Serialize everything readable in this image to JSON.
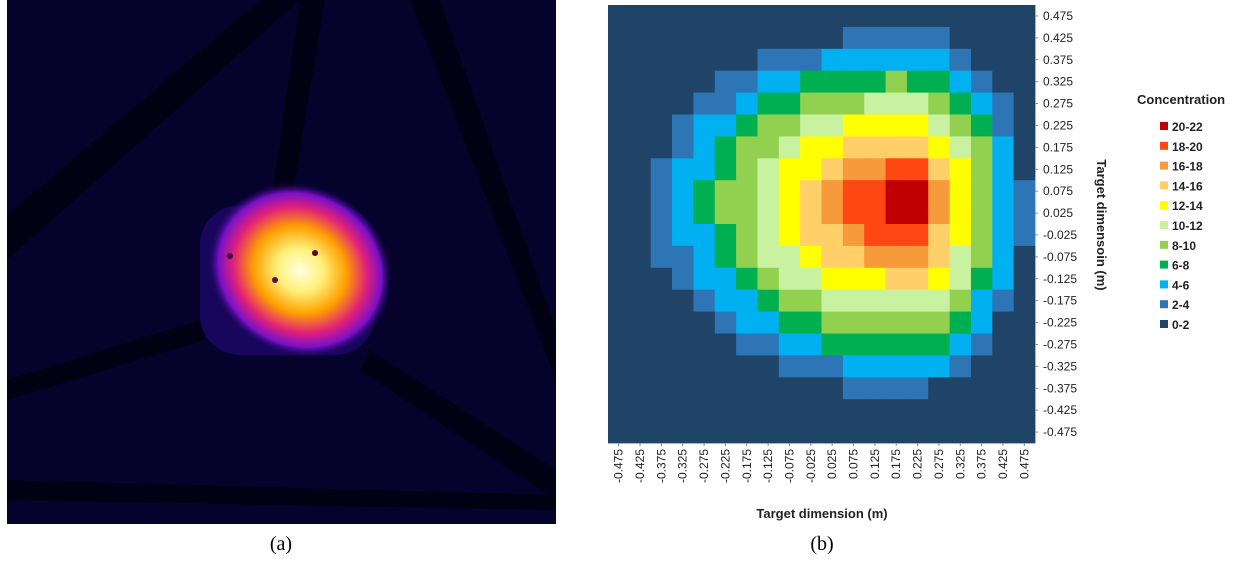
{
  "figure_labels": [
    "(a)",
    "(b)"
  ],
  "chart_data": {
    "type": "contour",
    "xlabel": "Target dimension (m)",
    "ylabel": "Target dimensoin (m)",
    "legend_title": "Concentration",
    "xlim": [
      -0.5,
      0.5
    ],
    "ylim": [
      -0.5,
      0.5
    ],
    "xticks": [
      -0.475,
      -0.425,
      -0.375,
      -0.325,
      -0.275,
      -0.225,
      -0.175,
      -0.125,
      -0.075,
      -0.025,
      0.025,
      0.075,
      0.125,
      0.175,
      0.225,
      0.275,
      0.325,
      0.375,
      0.425,
      0.475
    ],
    "yticks": [
      0.475,
      0.425,
      0.375,
      0.325,
      0.275,
      0.225,
      0.175,
      0.125,
      0.075,
      0.025,
      -0.025,
      -0.075,
      -0.125,
      -0.175,
      -0.225,
      -0.275,
      -0.325,
      -0.375,
      -0.425,
      -0.475
    ],
    "x": [
      -0.475,
      -0.425,
      -0.375,
      -0.325,
      -0.275,
      -0.225,
      -0.175,
      -0.125,
      -0.075,
      -0.025,
      0.025,
      0.075,
      0.125,
      0.175,
      0.225,
      0.275,
      0.325,
      0.375,
      0.425,
      0.475
    ],
    "y": [
      0.475,
      0.425,
      0.375,
      0.325,
      0.275,
      0.225,
      0.175,
      0.125,
      0.075,
      0.025,
      -0.025,
      -0.075,
      -0.125,
      -0.175,
      -0.225,
      -0.275,
      -0.325,
      -0.375,
      -0.425,
      -0.475
    ],
    "z": [
      [
        1,
        1,
        1,
        1,
        1,
        1,
        1,
        1,
        1,
        1,
        1,
        1,
        1,
        1,
        1,
        1,
        1,
        1,
        1,
        1
      ],
      [
        1,
        1,
        1,
        1,
        1,
        1,
        1,
        1,
        1,
        1,
        1,
        2,
        2,
        2,
        2,
        2,
        1,
        1,
        1,
        1
      ],
      [
        1,
        1,
        1,
        1,
        1,
        1,
        1,
        2,
        3,
        3,
        4,
        4,
        5,
        5,
        5,
        4,
        3,
        1,
        1,
        1
      ],
      [
        1,
        1,
        1,
        1,
        1,
        2,
        3,
        4,
        5,
        6,
        6,
        7,
        7,
        8,
        7,
        7,
        5,
        3,
        1,
        1
      ],
      [
        1,
        1,
        1,
        1,
        2,
        3,
        5,
        6,
        7,
        8,
        9,
        9,
        10,
        10,
        10,
        9,
        7,
        5,
        2,
        1
      ],
      [
        1,
        1,
        1,
        2,
        4,
        5,
        6,
        8,
        9,
        10,
        11,
        12,
        12,
        13,
        13,
        11,
        9,
        6,
        3,
        1
      ],
      [
        1,
        1,
        1,
        3,
        5,
        6,
        8,
        9,
        11,
        12,
        13,
        14,
        15,
        15,
        15,
        13,
        11,
        8,
        4,
        1
      ],
      [
        1,
        1,
        2,
        4,
        5,
        7,
        9,
        10,
        12,
        13,
        15,
        16,
        17,
        18,
        18,
        15,
        12,
        9,
        5,
        1
      ],
      [
        1,
        1,
        2,
        4,
        6,
        8,
        9,
        11,
        13,
        14,
        16,
        18,
        19,
        21,
        21,
        16,
        13,
        9,
        5,
        2
      ],
      [
        1,
        1,
        2,
        4,
        6,
        8,
        9,
        11,
        13,
        14,
        16,
        18,
        19,
        21,
        20,
        16,
        13,
        9,
        5,
        2
      ],
      [
        1,
        1,
        2,
        4,
        5,
        7,
        9,
        10,
        12,
        14,
        15,
        16,
        18,
        18,
        18,
        15,
        12,
        9,
        5,
        2
      ],
      [
        1,
        1,
        2,
        3,
        5,
        6,
        8,
        10,
        11,
        12,
        14,
        15,
        16,
        16,
        16,
        14,
        11,
        8,
        4,
        1
      ],
      [
        1,
        1,
        1,
        2,
        4,
        5,
        7,
        8,
        10,
        11,
        12,
        13,
        13,
        14,
        14,
        12,
        10,
        7,
        4,
        1
      ],
      [
        1,
        1,
        1,
        1,
        3,
        4,
        5,
        7,
        8,
        9,
        10,
        11,
        11,
        11,
        11,
        10,
        8,
        5,
        2,
        1
      ],
      [
        1,
        1,
        1,
        1,
        1,
        3,
        4,
        5,
        6,
        7,
        8,
        8,
        9,
        9,
        9,
        8,
        6,
        4,
        1,
        1
      ],
      [
        1,
        1,
        1,
        1,
        1,
        1,
        2,
        3,
        4,
        5,
        6,
        6,
        7,
        7,
        7,
        6,
        4,
        2,
        1,
        1
      ],
      [
        1,
        1,
        1,
        1,
        1,
        1,
        1,
        1,
        2,
        3,
        3,
        4,
        4,
        4,
        4,
        4,
        2,
        1,
        1,
        1
      ],
      [
        1,
        1,
        1,
        1,
        1,
        1,
        1,
        1,
        1,
        1,
        1,
        2,
        2,
        2,
        2,
        1,
        1,
        1,
        1,
        1
      ],
      [
        1,
        1,
        1,
        1,
        1,
        1,
        1,
        1,
        1,
        1,
        1,
        1,
        1,
        1,
        1,
        1,
        1,
        1,
        1,
        1
      ],
      [
        1,
        1,
        1,
        1,
        1,
        1,
        1,
        1,
        1,
        1,
        1,
        1,
        1,
        1,
        1,
        1,
        1,
        1,
        1,
        1
      ]
    ],
    "levels": [
      {
        "name": "20-22",
        "min": 20,
        "max": 22,
        "color": "#c00000"
      },
      {
        "name": "18-20",
        "min": 18,
        "max": 20,
        "color": "#ff4713"
      },
      {
        "name": "16-18",
        "min": 16,
        "max": 18,
        "color": "#f79a3b"
      },
      {
        "name": "14-16",
        "min": 14,
        "max": 16,
        "color": "#ffcf6a"
      },
      {
        "name": "12-14",
        "min": 12,
        "max": 14,
        "color": "#ffff00"
      },
      {
        "name": "10-12",
        "min": 10,
        "max": 12,
        "color": "#c9f2a0"
      },
      {
        "name": "8-10",
        "min": 8,
        "max": 10,
        "color": "#92d050"
      },
      {
        "name": "6-8",
        "min": 6,
        "max": 8,
        "color": "#00b050"
      },
      {
        "name": "4-6",
        "min": 4,
        "max": 6,
        "color": "#00b0f0"
      },
      {
        "name": "2-4",
        "min": 2,
        "max": 4,
        "color": "#2e75b6"
      },
      {
        "name": "0-2",
        "min": 0,
        "max": 2,
        "color": "#1f4468"
      }
    ]
  }
}
